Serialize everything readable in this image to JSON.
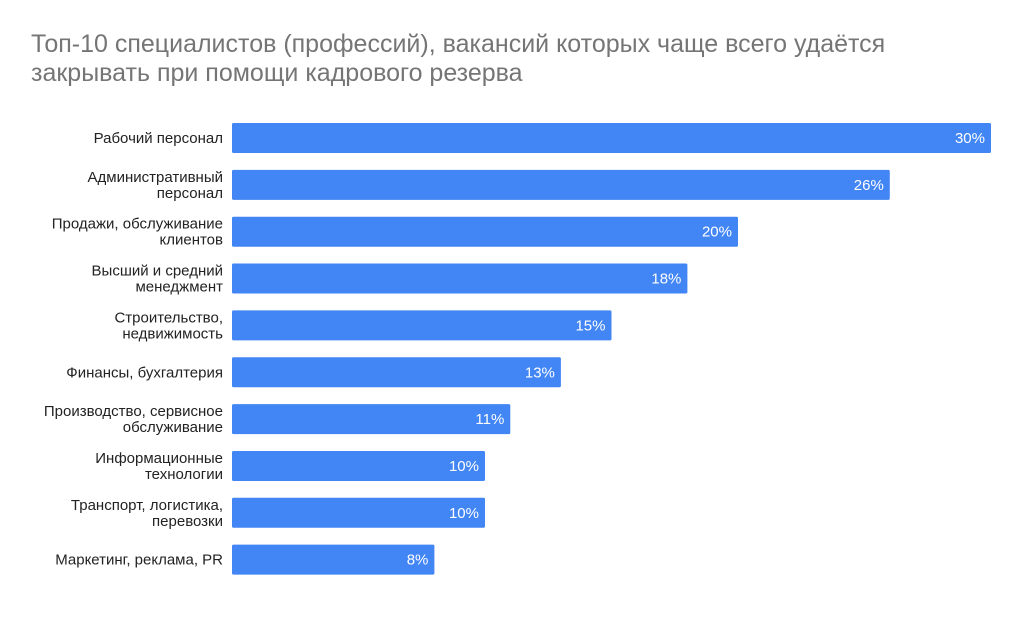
{
  "chart_data": {
    "type": "bar",
    "orientation": "horizontal",
    "title": "Топ-10 специалистов (профессий), вакансий которых чаще всего удаётся закрывать при помощи кадрового резерва",
    "categories": [
      [
        "Рабочий персонал"
      ],
      [
        "Административный",
        "персонал"
      ],
      [
        "Продажи, обслуживание",
        "клиентов"
      ],
      [
        "Высший и средний",
        "менеджмент"
      ],
      [
        "Строительство,",
        "недвижимость"
      ],
      [
        "Финансы, бухгалтерия"
      ],
      [
        "Производство, сервисное",
        "обслуживание"
      ],
      [
        "Информационные",
        "технологии"
      ],
      [
        "Транспорт, логистика,",
        "перевозки"
      ],
      [
        "Маркетинг, реклама, PR"
      ]
    ],
    "values": [
      30,
      26,
      20,
      18,
      15,
      13,
      11,
      10,
      10,
      8
    ],
    "value_labels": [
      "30%",
      "26%",
      "20%",
      "18%",
      "15%",
      "13%",
      "11%",
      "10%",
      "10%",
      "8%"
    ],
    "xlim": [
      0,
      30
    ],
    "grid": false,
    "legend": "none",
    "bar_color": "#4285f4"
  }
}
